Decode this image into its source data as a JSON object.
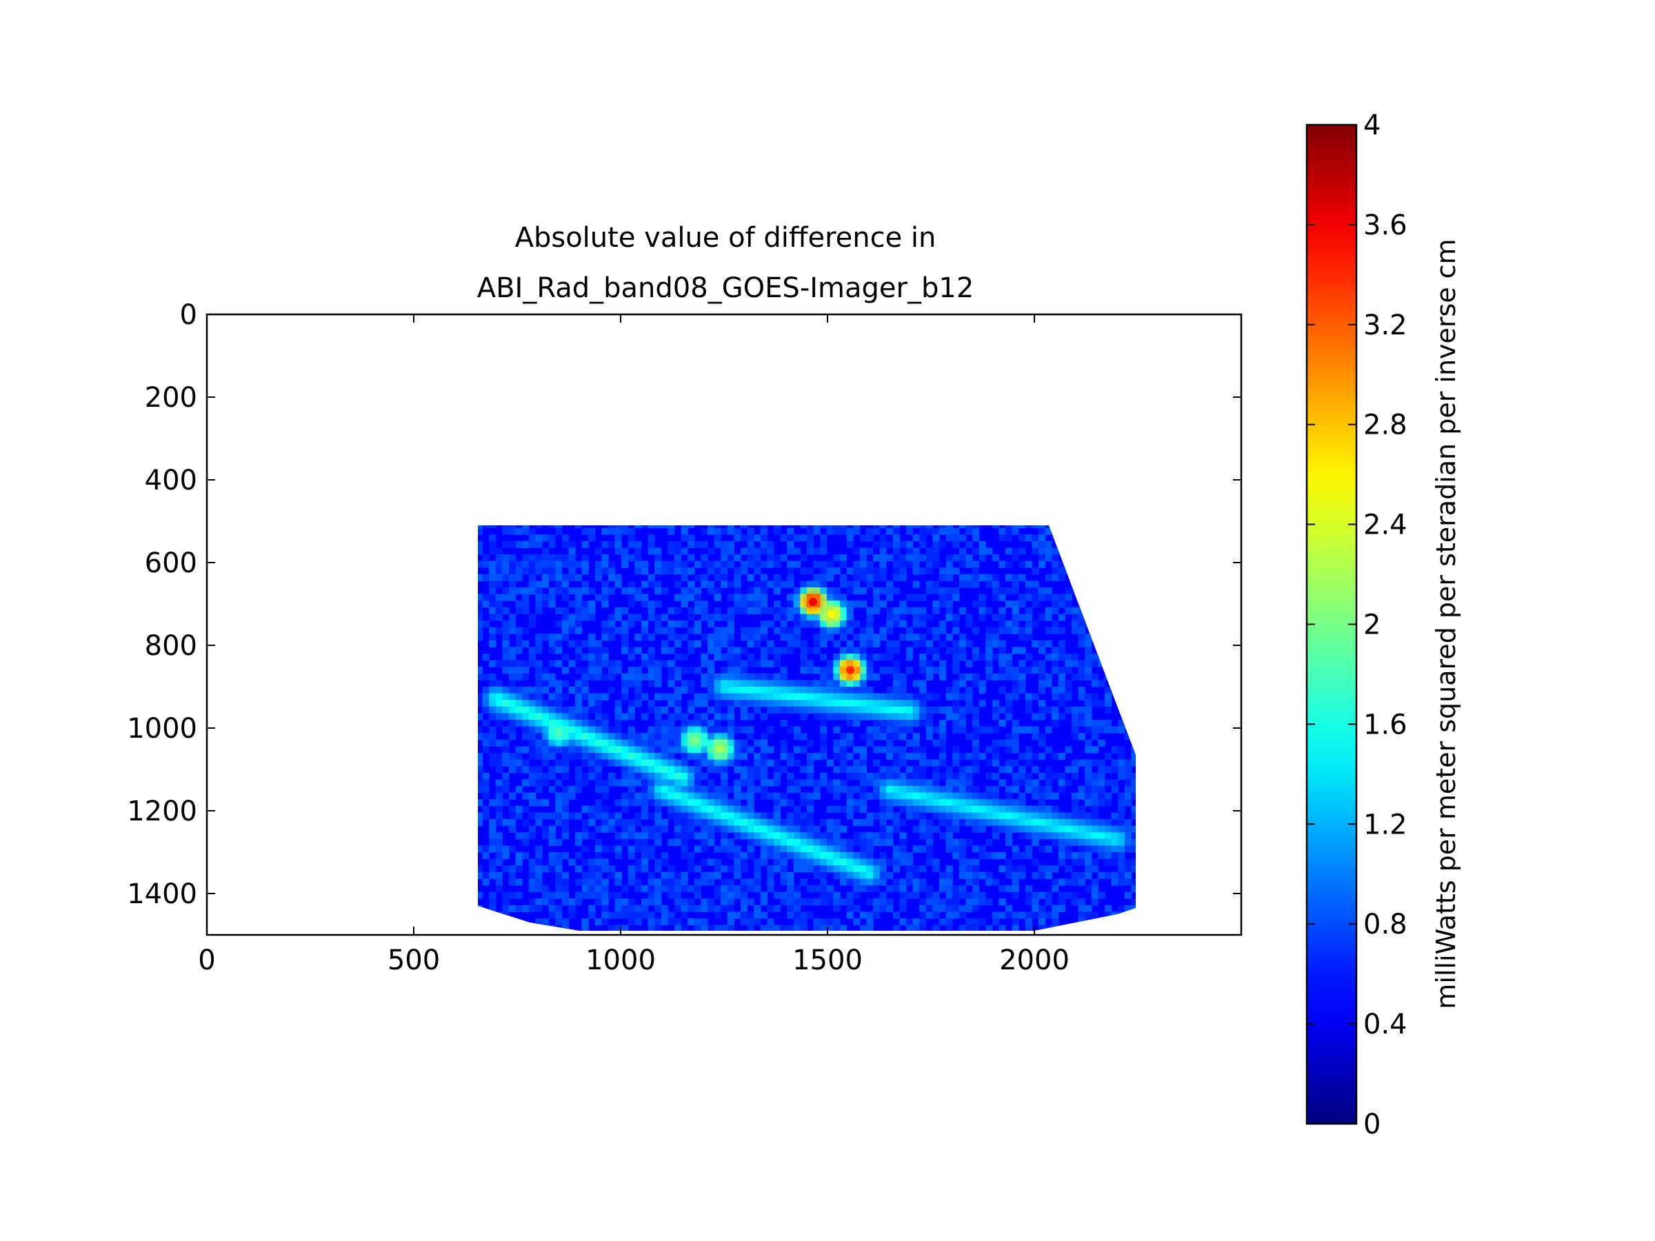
{
  "chart_data": {
    "type": "heatmap",
    "title": "Absolute value of difference in\nABI_Rad_band08_GOES-Imager_b12",
    "xlabel": "",
    "ylabel": "",
    "xlim": [
      0,
      2500
    ],
    "ylim": [
      1500,
      0
    ],
    "x_ticks": [
      0,
      500,
      1000,
      1500,
      2000
    ],
    "x_tick_labels": [
      "0",
      "500",
      "1000",
      "1500",
      "2000"
    ],
    "y_ticks": [
      0,
      200,
      400,
      600,
      800,
      1000,
      1200,
      1400
    ],
    "y_tick_labels": [
      "0",
      "200",
      "400",
      "600",
      "800",
      "1000",
      "1200",
      "1400"
    ],
    "data_region": [
      [
        655,
        510
      ],
      [
        2035,
        510
      ],
      [
        2245,
        1065
      ],
      [
        2245,
        1435
      ],
      [
        2200,
        1450
      ],
      [
        2000,
        1490
      ],
      [
        900,
        1490
      ],
      [
        780,
        1470
      ],
      [
        655,
        1430
      ]
    ],
    "hotspots": [
      {
        "x": 1465,
        "y": 695,
        "value": 3.6
      },
      {
        "x": 1555,
        "y": 860,
        "value": 3.4
      },
      {
        "x": 1510,
        "y": 725,
        "value": 2.6
      },
      {
        "x": 1240,
        "y": 1050,
        "value": 2.2
      },
      {
        "x": 1180,
        "y": 1030,
        "value": 2.0
      },
      {
        "x": 850,
        "y": 1010,
        "value": 1.8
      }
    ],
    "grid": false,
    "colorbar": {
      "label": "milliWatts per meter squared per steradian per inverse cm",
      "min": 0,
      "max": 4,
      "ticks": [
        0,
        0.4,
        0.8,
        1.2,
        1.6,
        2,
        2.4,
        2.8,
        3.2,
        3.6,
        4
      ],
      "tick_labels": [
        "0",
        "0.4",
        "0.8",
        "1.2",
        "1.6",
        "2",
        "2.4",
        "2.8",
        "3.2",
        "3.6",
        "4"
      ],
      "colormap": "jet",
      "colors": [
        "#00007f",
        "#0000ff",
        "#007fff",
        "#00ffff",
        "#7fff7f",
        "#ffff00",
        "#ff7f00",
        "#ff0000",
        "#7f0000"
      ]
    }
  }
}
